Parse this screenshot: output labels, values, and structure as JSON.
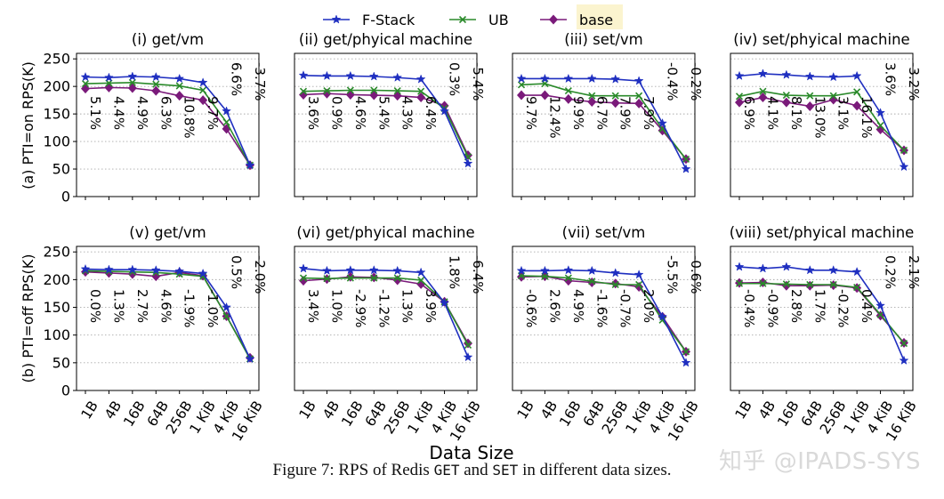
{
  "chart_data": {
    "type": "line",
    "legend": [
      {
        "name": "F-Stack",
        "color": "#1f2fc0",
        "marker": "star"
      },
      {
        "name": "UB",
        "color": "#2a8a2a",
        "marker": "x"
      },
      {
        "name": "base",
        "color": "#7a1a7a",
        "marker": "diamond"
      }
    ],
    "legend_highlight_entry": "base",
    "categories": [
      "1B",
      "4B",
      "16B",
      "64B",
      "256B",
      "1 KiB",
      "4 KiB",
      "16 KiB"
    ],
    "xlabel": "Data Size",
    "ylim": [
      0,
      260
    ],
    "yticks": [
      0,
      50,
      100,
      150,
      200,
      250
    ],
    "row_ylabels": [
      "(a) PTI=on RPS(K)",
      "(b) PTI=off RPS(K)"
    ],
    "panels": [
      {
        "title": "(i) get/vm",
        "series": {
          "F-Stack": [
            217,
            216,
            218,
            217,
            214,
            207,
            155,
            57
          ],
          "UB": [
            205,
            206,
            207,
            204,
            201,
            193,
            135,
            57
          ],
          "base": [
            196,
            198,
            197,
            192,
            183,
            175,
            123,
            57
          ]
        },
        "annotations": [
          "5.1%",
          "4.4%",
          "4.9%",
          "6.3%",
          "10.8%",
          "9.7%",
          "6.6%",
          "-3.7%"
        ]
      },
      {
        "title": "(ii) get/phyical machine",
        "series": {
          "F-Stack": [
            220,
            219,
            219,
            218,
            216,
            213,
            155,
            60
          ],
          "UB": [
            191,
            192,
            193,
            193,
            192,
            191,
            160,
            72
          ],
          "base": [
            185,
            187,
            185,
            184,
            183,
            180,
            165,
            75
          ]
        },
        "annotations": [
          "3.6%",
          "0.9%",
          "4.6%",
          "5.4%",
          "4.3%",
          "6.4%",
          "0.3%",
          "-5.4%"
        ]
      },
      {
        "title": "(iii) set/vm",
        "series": {
          "F-Stack": [
            214,
            214,
            214,
            214,
            213,
            210,
            133,
            50
          ],
          "UB": [
            203,
            205,
            192,
            183,
            183,
            183,
            123,
            68
          ],
          "base": [
            184,
            184,
            177,
            172,
            170,
            169,
            120,
            68
          ]
        },
        "annotations": [
          "9.7%",
          "12.4%",
          "9.9%",
          "6.7%",
          "7.9%",
          "7.9%",
          "-0.4%",
          "-0.2%"
        ]
      },
      {
        "title": "(iv) set/phyical machine",
        "series": {
          "F-Stack": [
            219,
            223,
            221,
            218,
            217,
            219,
            152,
            54
          ],
          "UB": [
            182,
            191,
            184,
            183,
            183,
            190,
            129,
            84
          ],
          "base": [
            171,
            180,
            171,
            164,
            176,
            165,
            122,
            84
          ]
        },
        "annotations": [
          "6.9%",
          "4.1%",
          "8.1%",
          "13.0%",
          "3.1%",
          "16.1%",
          "3.6%",
          "-3.2%"
        ]
      },
      {
        "title": "(v) get/vm",
        "series": {
          "F-Stack": [
            219,
            218,
            218,
            217,
            215,
            211,
            150,
            57
          ],
          "UB": [
            216,
            215,
            214,
            213,
            210,
            206,
            134,
            57
          ],
          "base": [
            214,
            212,
            210,
            206,
            213,
            207,
            134,
            59
          ]
        },
        "annotations": [
          "0.0%",
          "1.3%",
          "2.7%",
          "4.6%",
          "-1.9%",
          "-1.0%",
          "0.5%",
          "-2.0%"
        ]
      },
      {
        "title": "(vi) get/phyical machine",
        "series": {
          "F-Stack": [
            220,
            216,
            217,
            217,
            216,
            213,
            158,
            60
          ],
          "UB": [
            203,
            202,
            203,
            203,
            203,
            199,
            160,
            82
          ],
          "base": [
            198,
            201,
            205,
            204,
            199,
            192,
            160,
            85
          ]
        },
        "annotations": [
          "3.4%",
          "1.0%",
          "-2.9%",
          "-1.2%",
          "1.3%",
          "3.9%",
          "1.8%",
          "-6.4%"
        ]
      },
      {
        "title": "(vii) set/vm",
        "series": {
          "F-Stack": [
            216,
            216,
            217,
            216,
            212,
            209,
            133,
            50
          ],
          "UB": [
            207,
            206,
            203,
            197,
            191,
            191,
            127,
            70
          ],
          "base": [
            205,
            206,
            198,
            195,
            193,
            187,
            133,
            70
          ]
        },
        "annotations": [
          "-0.6%",
          "2.6%",
          "4.9%",
          "-1.6%",
          "-0.7%",
          "2.0%",
          "-5.5%",
          "-0.6%"
        ]
      },
      {
        "title": "(viii) set/phyical machine",
        "series": {
          "F-Stack": [
            223,
            220,
            223,
            217,
            217,
            214,
            153,
            54
          ],
          "UB": [
            193,
            193,
            192,
            191,
            191,
            186,
            137,
            85
          ],
          "base": [
            194,
            195,
            189,
            189,
            190,
            185,
            135,
            86
          ]
        },
        "annotations": [
          "-0.4%",
          "-0.9%",
          "2.8%",
          "1.7%",
          "-0.2%",
          "0.4%",
          "0.2%",
          "2.1%"
        ]
      }
    ]
  },
  "caption": {
    "prefix": "Figure 7: RPS of Redis ",
    "code1": "GET",
    "middle": " and ",
    "code2": "SET",
    "suffix": " in different data sizes."
  },
  "watermark": "知乎 @IPADS-SYS"
}
